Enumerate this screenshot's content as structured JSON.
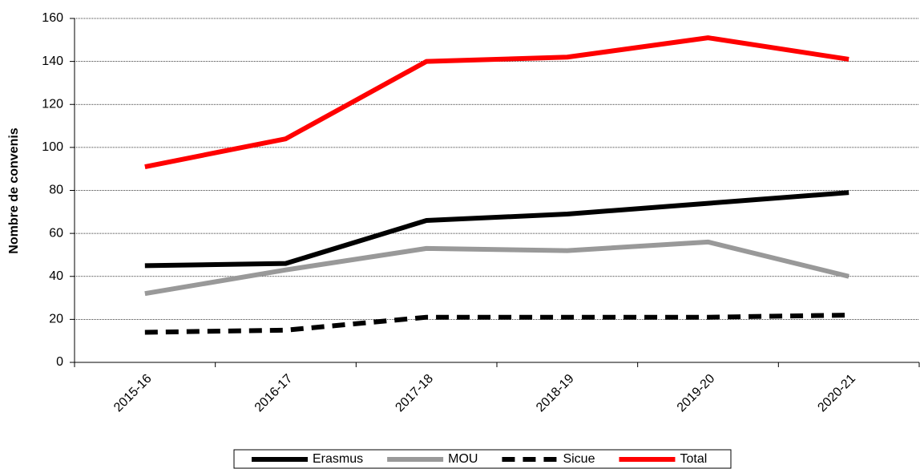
{
  "chart_data": {
    "type": "line",
    "y_label": "Nombre de convenis",
    "categories": [
      "2015-16",
      "2016-17",
      "2017-18",
      "2018-19",
      "2019-20",
      "2020-21"
    ],
    "series": [
      {
        "name": "Erasmus",
        "color": "#000000",
        "values": [
          45,
          46,
          66,
          69,
          74,
          79
        ]
      },
      {
        "name": "MOU",
        "color": "#999999",
        "values": [
          32,
          43,
          53,
          52,
          56,
          40
        ]
      },
      {
        "name": "Sicue",
        "color": "#000000",
        "dashed": true,
        "values": [
          14,
          15,
          21,
          21,
          21,
          22
        ]
      },
      {
        "name": "Total",
        "color": "#ff0000",
        "values": [
          91,
          104,
          140,
          142,
          151,
          141
        ]
      }
    ],
    "ylim": [
      0,
      160
    ],
    "yticks": [
      0,
      20,
      40,
      60,
      80,
      100,
      120,
      140,
      160
    ],
    "grid": true,
    "legend": "bottom"
  }
}
